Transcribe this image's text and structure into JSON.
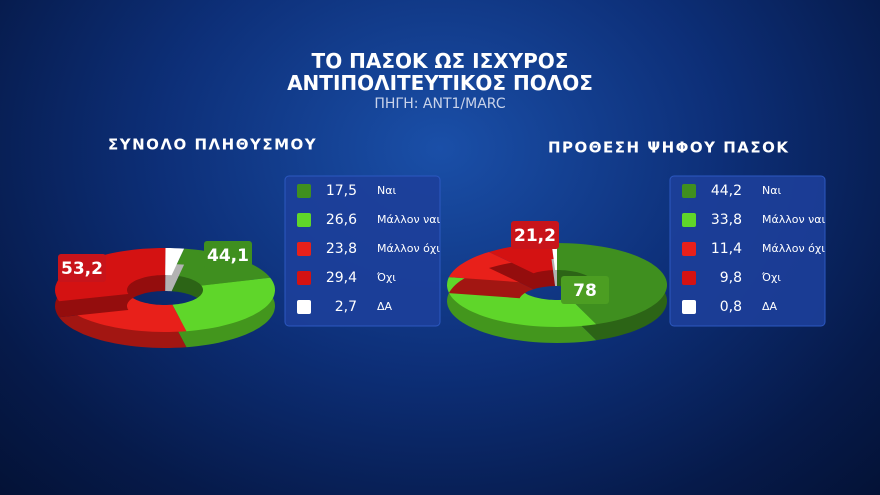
{
  "header": {
    "title": "ΤΟ ΠΑΣΟΚ ΩΣ ΙΣΧΥΡΟΣ ΑΝΤΙΠΟΛΙΤΕΥΤΙΚΟΣ ΠΟΛΟΣ",
    "source": "ΠΗΓΗ: ΑΝΤ1/MARC"
  },
  "chart_data": [
    {
      "type": "pie",
      "title": "ΣΥΝΟΛΟ ΠΛΗΘΥΣΜΟΥ",
      "categories": [
        "Ναι",
        "Μάλλον ναι",
        "Μάλλον όχι",
        "Όχι",
        "ΔΑ"
      ],
      "values": [
        17.5,
        26.6,
        23.8,
        29.4,
        2.7
      ],
      "value_labels": [
        "17,5",
        "26,6",
        "23,8",
        "29,4",
        "2,7"
      ],
      "colors": [
        "#3f8f1f",
        "#5fd62a",
        "#e8201a",
        "#d41212",
        "#ffffff"
      ],
      "annotations": [
        {
          "value": 44.1,
          "label": "44,1",
          "color": "#3f8f1f"
        },
        {
          "value": 53.2,
          "label": "53,2",
          "color": "#c8141a"
        }
      ]
    },
    {
      "type": "pie",
      "title": "ΠΡΟΘΕΣΗ ΨΗΦΟΥ ΠΑΣΟΚ",
      "categories": [
        "Ναι",
        "Μάλλον ναι",
        "Μάλλον όχι",
        "Όχι",
        "ΔΑ"
      ],
      "values": [
        44.2,
        33.8,
        11.4,
        9.8,
        0.8
      ],
      "value_labels": [
        "44,2",
        "33,8",
        "11,4",
        "9,8",
        "0,8"
      ],
      "colors": [
        "#3f8f1f",
        "#5fd62a",
        "#e8201a",
        "#d41212",
        "#ffffff"
      ],
      "annotations": [
        {
          "value": 78,
          "label": "78",
          "color": "#4c9e22"
        },
        {
          "value": 21.2,
          "label": "21,2",
          "color": "#c8141a"
        }
      ]
    }
  ]
}
